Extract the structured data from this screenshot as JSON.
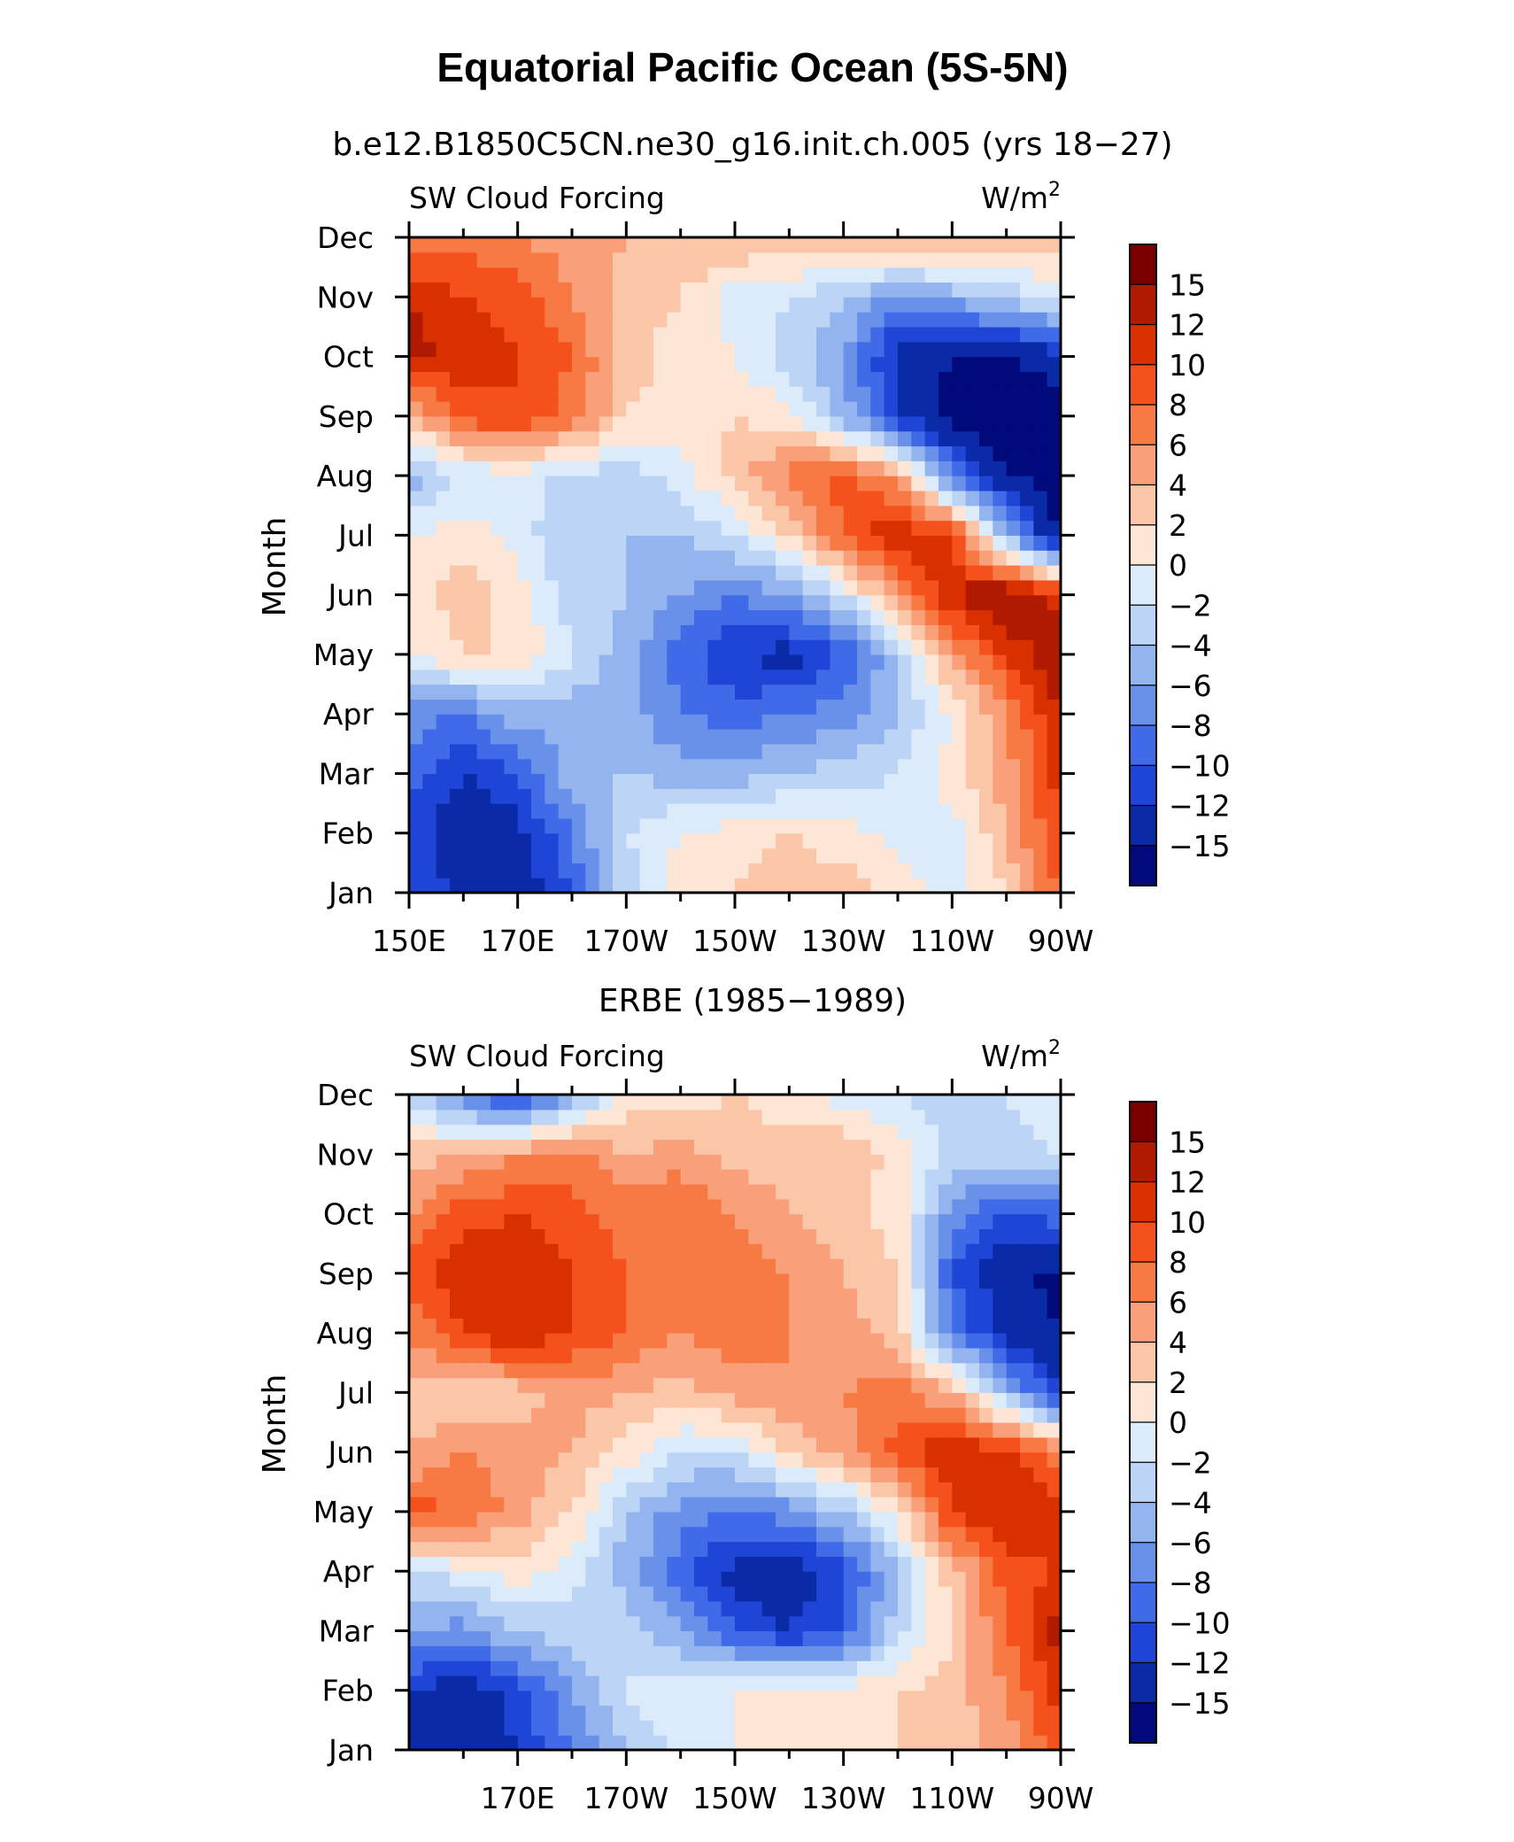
{
  "figure": {
    "title": "Equatorial Pacific Ocean (5S-5N)"
  },
  "colorbar": {
    "labels": [
      "15",
      "12",
      "10",
      "8",
      "6",
      "4",
      "2",
      "0",
      "−2",
      "−4",
      "−6",
      "−8",
      "−10",
      "−12",
      "−15"
    ],
    "colors": [
      "#7a0000",
      "#b01a00",
      "#d93000",
      "#f5511c",
      "#f77a45",
      "#f9a07a",
      "#fbc6a8",
      "#fde6d6",
      "#dcebf9",
      "#bcd4f5",
      "#93b4ef",
      "#6a91ea",
      "#3f6ae8",
      "#1f45d6",
      "#0a2aa8",
      "#000a7a"
    ]
  },
  "chart_data": [
    {
      "type": "heatmap",
      "title": "b.e12.B1850C5CN.ne30_g16.init.ch.005 (yrs 18−27)",
      "left_label": "SW Cloud Forcing",
      "right_label": "W/m",
      "right_label_sup": "2",
      "ylabel": "Month",
      "y_categories": [
        "Jan",
        "Feb",
        "Mar",
        "Apr",
        "May",
        "Jun",
        "Jul",
        "Aug",
        "Sep",
        "Oct",
        "Nov",
        "Dec"
      ],
      "x_tick_labels": [
        "150E",
        "170E",
        "170W",
        "150W",
        "130W",
        "110W",
        "90W"
      ],
      "x_tick_values": [
        150,
        170,
        190,
        210,
        230,
        250,
        270
      ],
      "xlim": [
        150,
        270
      ],
      "value_grid": [
        [
          -10,
          -13,
          -14,
          -10,
          -3,
          1,
          2,
          3,
          3,
          1,
          -1,
          2,
          8
        ],
        [
          -11,
          -14,
          -13,
          -8,
          -2,
          0,
          1,
          2,
          1,
          -1,
          -1,
          4,
          10
        ],
        [
          -9,
          -12,
          -10,
          -5,
          -4,
          -5,
          -5,
          -4,
          -3,
          -2,
          1,
          5,
          11
        ],
        [
          -7,
          -8,
          -5,
          -5,
          -5,
          -8,
          -9,
          -8,
          -7,
          -4,
          0,
          6,
          12
        ],
        [
          0,
          2,
          2,
          -2,
          -5,
          -9,
          -12,
          -13,
          -10,
          -4,
          5,
          10,
          14
        ],
        [
          1,
          3,
          1,
          -3,
          -4,
          -6,
          -8,
          -6,
          -2,
          6,
          12,
          15,
          11
        ],
        [
          0,
          1,
          -1,
          -4,
          -4,
          -4,
          -2,
          2,
          8,
          12,
          10,
          -5,
          -16
        ],
        [
          -5,
          -2,
          -1,
          -3,
          -3,
          -1,
          3,
          7,
          9,
          5,
          -8,
          -15,
          -17
        ],
        [
          3,
          9,
          10,
          7,
          2,
          1,
          2,
          1,
          -5,
          -12,
          -16,
          -17,
          -18
        ],
        [
          13,
          11,
          10,
          8,
          3,
          1,
          0,
          -3,
          -6,
          -13,
          -15,
          -15,
          -13
        ],
        [
          12,
          10,
          9,
          6,
          3,
          2,
          -1,
          -2,
          -4,
          -7,
          -5,
          -3,
          -1
        ],
        [
          7,
          7,
          6,
          5,
          4,
          4,
          4,
          4,
          5,
          5,
          4,
          3,
          3
        ]
      ]
    },
    {
      "type": "heatmap",
      "title": "ERBE (1985−1989)",
      "left_label": "SW Cloud Forcing",
      "right_label": "W/m",
      "right_label_sup": "2",
      "ylabel": "Month",
      "y_categories": [
        "Jan",
        "Feb",
        "Mar",
        "Apr",
        "May",
        "Jun",
        "Jul",
        "Aug",
        "Sep",
        "Oct",
        "Nov",
        "Dec"
      ],
      "x_tick_labels": [
        "170E",
        "170W",
        "150W",
        "130W",
        "110W",
        "90W"
      ],
      "x_tick_values": [
        170,
        190,
        210,
        230,
        250,
        270
      ],
      "xlim": [
        150,
        270
      ],
      "value_grid": [
        [
          -14,
          -15,
          -12,
          -8,
          -4,
          -2,
          0,
          1,
          2,
          2,
          3,
          5,
          9
        ],
        [
          -12,
          -14,
          -11,
          -6,
          -2,
          0,
          0,
          1,
          1,
          2,
          3,
          6,
          11
        ],
        [
          -6,
          -7,
          -4,
          -3,
          -3,
          -6,
          -10,
          -12,
          -10,
          -3,
          2,
          8,
          13
        ],
        [
          -2,
          -1,
          1,
          -1,
          -5,
          -9,
          -13,
          -14,
          -11,
          -4,
          3,
          9,
          10
        ],
        [
          9,
          8,
          5,
          2,
          -4,
          -7,
          -8,
          -7,
          -4,
          1,
          10,
          12,
          11
        ],
        [
          4,
          6,
          5,
          4,
          1,
          -2,
          -2,
          2,
          5,
          9,
          12,
          11,
          7
        ],
        [
          3,
          2,
          3,
          5,
          4,
          3,
          5,
          6,
          6,
          7,
          4,
          -5,
          -12
        ],
        [
          6,
          10,
          12,
          10,
          8,
          6,
          7,
          6,
          5,
          3,
          -8,
          -13,
          -15
        ],
        [
          9,
          12,
          12,
          10,
          8,
          8,
          7,
          6,
          4,
          2,
          -10,
          -14,
          -16
        ],
        [
          6,
          9,
          10,
          9,
          7,
          8,
          6,
          4,
          3,
          1,
          -7,
          -10,
          -9
        ],
        [
          3,
          4,
          6,
          7,
          4,
          5,
          3,
          3,
          4,
          1,
          -3,
          -3,
          -2
        ],
        [
          -3,
          -8,
          -12,
          -6,
          1,
          1,
          2,
          1,
          -1,
          -2,
          -3,
          -2,
          -1
        ]
      ]
    }
  ]
}
